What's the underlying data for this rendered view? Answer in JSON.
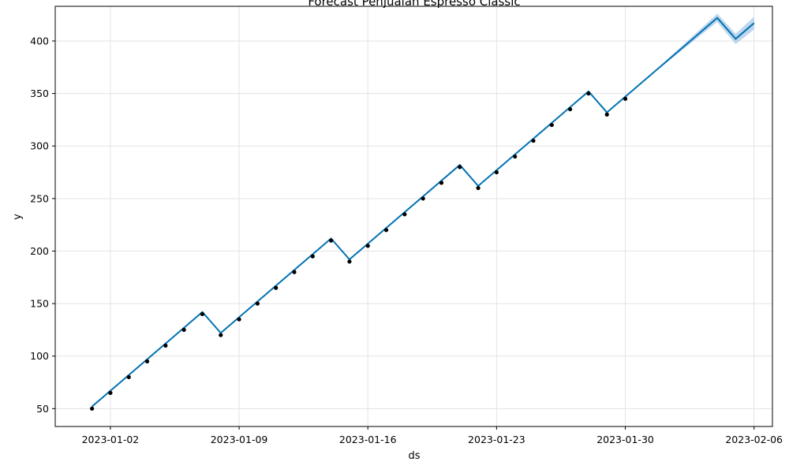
{
  "chart_data": {
    "type": "line",
    "title": "Forecast Penjualan Espresso Classic",
    "xlabel": "ds",
    "ylabel": "y",
    "grid": true,
    "x_range": [
      "2022-12-30",
      "2023-02-07"
    ],
    "ylim": [
      33,
      433
    ],
    "x_ticks": [
      "2023-01-02",
      "2023-01-09",
      "2023-01-16",
      "2023-01-23",
      "2023-01-30",
      "2023-02-06"
    ],
    "y_ticks": [
      50,
      100,
      150,
      200,
      250,
      300,
      350,
      400
    ],
    "colors": {
      "forecast_line": "#0072b2",
      "uncertainty_band": "#a8c8e8",
      "actual_points": "#000000",
      "grid": "#e3e3e3"
    },
    "series": [
      {
        "role": "actual",
        "x": [
          "2023-01-01",
          "2023-01-02",
          "2023-01-03",
          "2023-01-04",
          "2023-01-05",
          "2023-01-06",
          "2023-01-07",
          "2023-01-08",
          "2023-01-09",
          "2023-01-10",
          "2023-01-11",
          "2023-01-12",
          "2023-01-13",
          "2023-01-14",
          "2023-01-15",
          "2023-01-16",
          "2023-01-17",
          "2023-01-18",
          "2023-01-19",
          "2023-01-20",
          "2023-01-21",
          "2023-01-22",
          "2023-01-23",
          "2023-01-24",
          "2023-01-25",
          "2023-01-26",
          "2023-01-27",
          "2023-01-28",
          "2023-01-29",
          "2023-01-30"
        ],
        "y": [
          50,
          65,
          80,
          95,
          110,
          125,
          140,
          120,
          135,
          150,
          165,
          180,
          195,
          210,
          190,
          205,
          220,
          235,
          250,
          265,
          280,
          260,
          275,
          290,
          305,
          320,
          335,
          350,
          330,
          345
        ]
      },
      {
        "role": "forecast",
        "x": [
          "2023-01-01",
          "2023-01-07",
          "2023-01-08",
          "2023-01-14",
          "2023-01-15",
          "2023-01-21",
          "2023-01-22",
          "2023-01-28",
          "2023-01-29",
          "2023-01-30",
          "2023-01-31",
          "2023-02-04",
          "2023-02-05",
          "2023-02-06"
        ],
        "y": [
          52,
          142,
          122,
          212,
          192,
          282,
          262,
          352,
          332,
          347,
          362,
          422,
          402,
          417
        ]
      },
      {
        "role": "uncertainty",
        "x": [
          "2023-01-31",
          "2023-02-04",
          "2023-02-05",
          "2023-02-06"
        ],
        "lower": [
          362,
          418,
          397,
          411
        ],
        "upper": [
          362,
          426,
          407,
          423
        ]
      }
    ]
  }
}
